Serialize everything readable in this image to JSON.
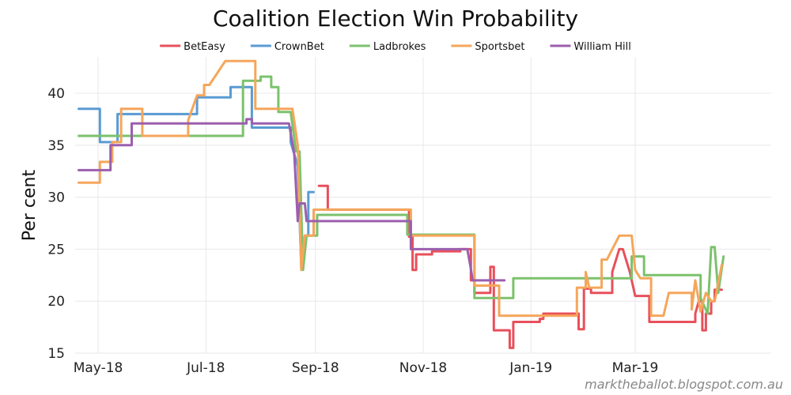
{
  "chart_data": {
    "type": "line",
    "title": "Coalition Election Win Probability",
    "xlabel": "",
    "ylabel": "Per cent",
    "ylim": [
      15,
      43.5
    ],
    "yticks": [
      15,
      20,
      25,
      30,
      35,
      40
    ],
    "xlim": [
      "2018-04-18",
      "2019-05-17"
    ],
    "xticks": [
      {
        "label": "May-18",
        "date": "2018-05-01"
      },
      {
        "label": "Jul-18",
        "date": "2018-07-01"
      },
      {
        "label": "Sep-18",
        "date": "2018-09-01"
      },
      {
        "label": "Nov-18",
        "date": "2018-11-01"
      },
      {
        "label": "Jan-19",
        "date": "2019-01-01"
      },
      {
        "label": "Mar-19",
        "date": "2019-03-01"
      }
    ],
    "grid": true,
    "legend_position": "top-center",
    "watermark": "marktheballot.blogspot.com.au",
    "series": [
      {
        "name": "BetEasy",
        "color": "#e8505b",
        "segments": [
          [
            [
              "2018-09-03",
              31.1
            ],
            [
              "2018-09-08",
              31.1
            ],
            [
              "2018-09-08",
              28.8
            ],
            [
              "2018-10-24",
              28.8
            ],
            [
              "2018-10-24",
              26.2
            ],
            [
              "2018-10-26",
              26.2
            ],
            [
              "2018-10-26",
              23.0
            ],
            [
              "2018-10-28",
              23.0
            ],
            [
              "2018-10-28",
              24.5
            ],
            [
              "2018-11-06",
              24.5
            ],
            [
              "2018-11-06",
              24.8
            ],
            [
              "2018-11-22",
              24.8
            ],
            [
              "2018-11-22",
              25.0
            ],
            [
              "2018-11-28",
              25.0
            ],
            [
              "2018-11-28",
              22.0
            ],
            [
              "2018-11-30",
              22.0
            ],
            [
              "2018-11-30",
              20.8
            ],
            [
              "2018-12-09",
              20.8
            ],
            [
              "2018-12-09",
              23.3
            ],
            [
              "2018-12-11",
              23.3
            ],
            [
              "2018-12-11",
              17.2
            ],
            [
              "2018-12-18",
              17.2
            ],
            [
              "2018-12-18",
              17.2
            ],
            [
              "2018-12-20",
              17.2
            ],
            [
              "2018-12-20",
              15.5
            ],
            [
              "2018-12-22",
              15.5
            ],
            [
              "2018-12-22",
              18.0
            ],
            [
              "2019-01-06",
              18.0
            ],
            [
              "2019-01-06",
              18.3
            ],
            [
              "2019-01-08",
              18.3
            ],
            [
              "2019-01-08",
              18.8
            ],
            [
              "2019-01-28",
              18.8
            ],
            [
              "2019-01-28",
              17.3
            ],
            [
              "2019-01-31",
              17.3
            ],
            [
              "2019-01-31",
              21.2
            ],
            [
              "2019-02-04",
              21.2
            ],
            [
              "2019-02-04",
              20.8
            ],
            [
              "2019-02-16",
              20.8
            ],
            [
              "2019-02-16",
              22.8
            ],
            [
              "2019-02-20",
              25.0
            ],
            [
              "2019-02-22",
              25.0
            ],
            [
              "2019-02-26",
              22.8
            ],
            [
              "2019-03-01",
              20.5
            ],
            [
              "2019-03-09",
              20.5
            ],
            [
              "2019-03-09",
              18.0
            ],
            [
              "2019-04-04",
              18.0
            ],
            [
              "2019-04-04",
              18.8
            ],
            [
              "2019-04-06",
              20.0
            ],
            [
              "2019-04-08",
              20.0
            ],
            [
              "2019-04-08",
              17.2
            ],
            [
              "2019-04-10",
              17.2
            ],
            [
              "2019-04-10",
              18.8
            ],
            [
              "2019-04-13",
              18.8
            ],
            [
              "2019-04-13",
              20.0
            ],
            [
              "2019-04-15",
              20.0
            ],
            [
              "2019-04-15",
              21.1
            ],
            [
              "2019-04-19",
              21.1
            ]
          ]
        ]
      },
      {
        "name": "CrownBet",
        "color": "#5a9bd4",
        "segments": [
          [
            [
              "2018-04-20",
              38.5
            ],
            [
              "2018-05-02",
              38.5
            ],
            [
              "2018-05-02",
              35.3
            ],
            [
              "2018-05-12",
              35.3
            ],
            [
              "2018-05-12",
              38.0
            ],
            [
              "2018-06-26",
              38.0
            ],
            [
              "2018-06-26",
              39.6
            ],
            [
              "2018-07-15",
              39.6
            ],
            [
              "2018-07-15",
              40.6
            ],
            [
              "2018-07-27",
              40.6
            ],
            [
              "2018-07-27",
              36.7
            ],
            [
              "2018-08-18",
              36.7
            ],
            [
              "2018-08-18",
              35.3
            ],
            [
              "2018-08-22",
              33.0
            ],
            [
              "2018-08-24",
              23.2
            ],
            [
              "2018-08-26",
              26.3
            ],
            [
              "2018-08-28",
              26.3
            ],
            [
              "2018-08-28",
              30.5
            ],
            [
              "2018-08-31",
              30.5
            ]
          ]
        ]
      },
      {
        "name": "Ladbrokes",
        "color": "#7bc26c",
        "segments": [
          [
            [
              "2018-04-20",
              35.9
            ],
            [
              "2018-07-22",
              35.9
            ],
            [
              "2018-07-22",
              41.2
            ],
            [
              "2018-08-01",
              41.2
            ],
            [
              "2018-08-01",
              41.6
            ],
            [
              "2018-08-07",
              41.6
            ],
            [
              "2018-08-07",
              40.6
            ],
            [
              "2018-08-11",
              40.6
            ],
            [
              "2018-08-11",
              38.2
            ],
            [
              "2018-08-18",
              38.2
            ],
            [
              "2018-08-21",
              34.4
            ],
            [
              "2018-08-23",
              34.4
            ],
            [
              "2018-08-25",
              23.0
            ],
            [
              "2018-08-27",
              26.3
            ],
            [
              "2018-09-02",
              26.3
            ],
            [
              "2018-09-02",
              28.3
            ],
            [
              "2018-10-23",
              28.3
            ],
            [
              "2018-10-23",
              26.4
            ],
            [
              "2018-11-30",
              26.4
            ],
            [
              "2018-11-30",
              20.3
            ],
            [
              "2018-12-22",
              20.3
            ],
            [
              "2018-12-22",
              22.2
            ],
            [
              "2019-02-27",
              22.2
            ],
            [
              "2019-02-27",
              24.3
            ],
            [
              "2019-03-06",
              24.3
            ],
            [
              "2019-03-06",
              22.5
            ],
            [
              "2019-04-07",
              22.5
            ],
            [
              "2019-04-07",
              20.3
            ],
            [
              "2019-04-11",
              18.8
            ],
            [
              "2019-04-13",
              25.2
            ],
            [
              "2019-04-15",
              25.2
            ],
            [
              "2019-04-17",
              20.8
            ],
            [
              "2019-04-20",
              24.3
            ]
          ]
        ]
      },
      {
        "name": "Sportsbet",
        "color": "#f5a65b",
        "segments": [
          [
            [
              "2018-04-20",
              31.4
            ],
            [
              "2018-05-02",
              31.4
            ],
            [
              "2018-05-02",
              33.4
            ],
            [
              "2018-05-09",
              33.4
            ],
            [
              "2018-05-09",
              35.3
            ],
            [
              "2018-05-14",
              35.3
            ],
            [
              "2018-05-14",
              38.5
            ],
            [
              "2018-05-26",
              38.5
            ],
            [
              "2018-05-26",
              35.9
            ],
            [
              "2018-06-21",
              35.9
            ],
            [
              "2018-06-21",
              37.4
            ],
            [
              "2018-06-26",
              39.8
            ],
            [
              "2018-06-30",
              39.8
            ],
            [
              "2018-06-30",
              40.8
            ],
            [
              "2018-07-03",
              40.8
            ],
            [
              "2018-07-12",
              43.1
            ],
            [
              "2018-07-29",
              43.1
            ],
            [
              "2018-07-29",
              38.5
            ],
            [
              "2018-08-19",
              38.5
            ],
            [
              "2018-08-22",
              35.0
            ],
            [
              "2018-08-24",
              23.0
            ],
            [
              "2018-08-26",
              26.3
            ],
            [
              "2018-08-31",
              26.3
            ],
            [
              "2018-08-31",
              28.8
            ],
            [
              "2018-10-25",
              28.8
            ],
            [
              "2018-10-25",
              26.3
            ],
            [
              "2018-11-30",
              26.3
            ],
            [
              "2018-11-30",
              21.5
            ],
            [
              "2018-12-14",
              21.5
            ],
            [
              "2018-12-14",
              18.6
            ],
            [
              "2019-01-27",
              18.6
            ],
            [
              "2019-01-27",
              21.3
            ],
            [
              "2019-02-01",
              21.3
            ],
            [
              "2019-02-01",
              22.8
            ],
            [
              "2019-02-03",
              21.3
            ],
            [
              "2019-02-10",
              21.3
            ],
            [
              "2019-02-10",
              24.0
            ],
            [
              "2019-02-13",
              24.0
            ],
            [
              "2019-02-20",
              26.3
            ],
            [
              "2019-02-27",
              26.3
            ],
            [
              "2019-03-01",
              23.0
            ],
            [
              "2019-03-04",
              22.2
            ],
            [
              "2019-03-10",
              22.2
            ],
            [
              "2019-03-10",
              18.6
            ],
            [
              "2019-03-17",
              18.6
            ],
            [
              "2019-03-20",
              20.8
            ],
            [
              "2019-04-02",
              20.8
            ],
            [
              "2019-04-02",
              19.2
            ],
            [
              "2019-04-04",
              22.0
            ],
            [
              "2019-04-07",
              19.0
            ],
            [
              "2019-04-10",
              20.8
            ],
            [
              "2019-04-13",
              20.0
            ],
            [
              "2019-04-15",
              20.0
            ],
            [
              "2019-04-19",
              23.5
            ]
          ]
        ]
      },
      {
        "name": "William Hill",
        "color": "#9b5fae",
        "segments": [
          [
            [
              "2018-04-20",
              32.6
            ],
            [
              "2018-05-08",
              32.6
            ],
            [
              "2018-05-08",
              35.0
            ],
            [
              "2018-05-20",
              35.0
            ],
            [
              "2018-05-20",
              37.1
            ],
            [
              "2018-07-24",
              37.1
            ],
            [
              "2018-07-24",
              37.5
            ],
            [
              "2018-07-27",
              37.5
            ],
            [
              "2018-07-27",
              37.1
            ],
            [
              "2018-08-17",
              37.1
            ],
            [
              "2018-08-20",
              34.2
            ],
            [
              "2018-08-22",
              27.7
            ],
            [
              "2018-08-23",
              29.4
            ],
            [
              "2018-08-26",
              29.4
            ],
            [
              "2018-08-27",
              27.7
            ],
            [
              "2018-10-25",
              27.7
            ],
            [
              "2018-10-25",
              25.0
            ],
            [
              "2018-11-26",
              25.0
            ],
            [
              "2018-11-28",
              23.1
            ],
            [
              "2018-11-29",
              22.0
            ],
            [
              "2018-12-17",
              22.0
            ]
          ]
        ]
      }
    ]
  }
}
